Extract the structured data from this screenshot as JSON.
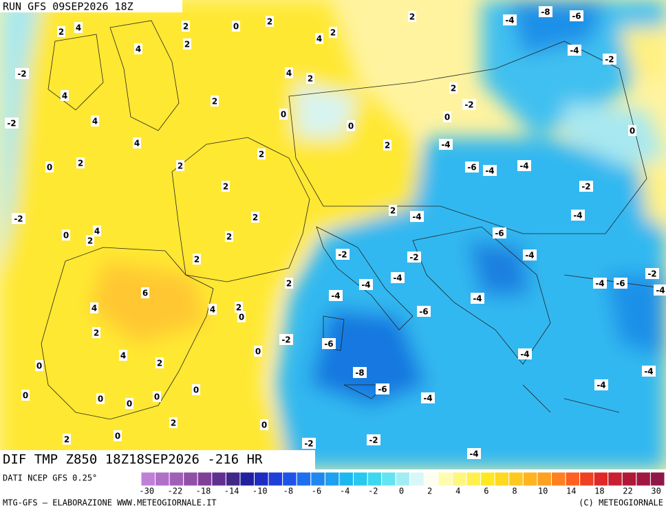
{
  "header": {
    "run": "RUN GFS 09SEP2026 18Z"
  },
  "footer": {
    "title": "DIF TMP Z850 18Z18SEP2026 -216 HR",
    "source": "DATI NCEP GFS 0.25°",
    "credit": "MTG-GFS — ELABORAZIONE WWW.METEOGIORNALE.IT",
    "copyright": "(C) METEOGIORNALE"
  },
  "colorbar": {
    "colors": [
      "#c080d8",
      "#b070c8",
      "#a060b8",
      "#9050a8",
      "#804098",
      "#603090",
      "#402888",
      "#2020a0",
      "#1e2cc0",
      "#1e40d8",
      "#1e54e8",
      "#1e6ef0",
      "#1e88f0",
      "#1ea0f0",
      "#1eb8f0",
      "#28c8f0",
      "#3cd8f0",
      "#64e4f0",
      "#a0eef4",
      "#d8f8f8",
      "#fffff0",
      "#fffcb0",
      "#fff680",
      "#fff050",
      "#ffe820",
      "#ffd820",
      "#ffc820",
      "#ffb420",
      "#ffa020",
      "#ff8020",
      "#ff6020",
      "#f04020",
      "#e02828",
      "#c82030",
      "#b01838",
      "#a01840",
      "#901848"
    ],
    "labels": [
      -30,
      -22,
      -18,
      -14,
      -10,
      -8,
      -6,
      -4,
      -2,
      0,
      2,
      4,
      6,
      8,
      10,
      14,
      18,
      22,
      30
    ]
  },
  "map_labels": [
    2,
    4,
    2,
    0,
    2,
    2,
    -4,
    -8,
    -6,
    2,
    4,
    4,
    2,
    -4,
    -2,
    -2,
    4,
    2,
    2,
    4,
    2,
    -2,
    0,
    0,
    -2,
    4,
    0,
    0,
    4,
    2,
    -4,
    2,
    0,
    2,
    2,
    -6,
    -4,
    -4,
    2,
    -2,
    -2,
    2,
    2,
    -4,
    -4,
    4,
    0,
    2,
    2,
    -6,
    -2,
    -2,
    -4,
    2,
    -4,
    -4,
    2,
    -4,
    -6,
    -2,
    -4,
    6,
    -4,
    -4,
    4,
    4,
    2,
    0,
    -6,
    2,
    -2,
    -6,
    0,
    4,
    2,
    -4,
    0,
    -8,
    -4,
    0,
    -6,
    -4,
    0,
    0,
    0,
    0,
    -4,
    2,
    0,
    2,
    0,
    -2,
    -2,
    -4
  ]
}
